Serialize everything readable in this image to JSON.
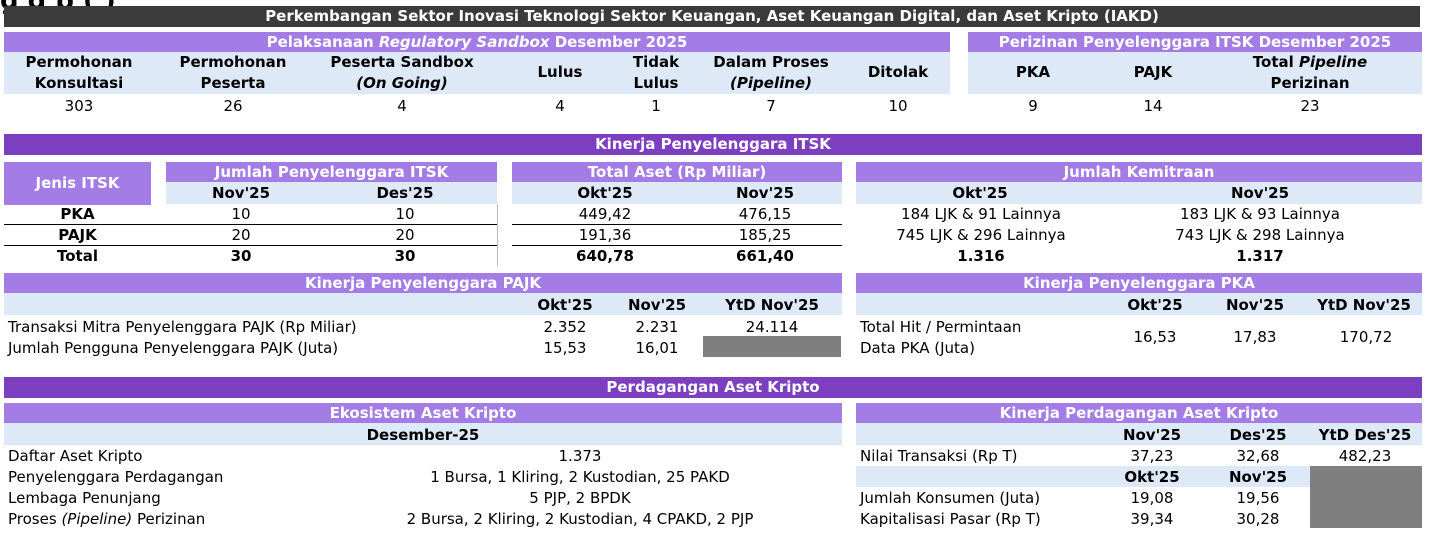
{
  "overflow_title": "g  g          p  (    )",
  "main_title": "Perkembangan Sektor Inovasi Teknologi Sektor Keuangan, Aset Keuangan Digital, dan Aset Kripto (IAKD)",
  "sandbox": {
    "title_pre": "Pelaksanaan ",
    "title_em": "Regulatory  Sandbox",
    "title_post": "  Desember 2025",
    "h_konsultasi_1": "Permohonan",
    "h_konsultasi_2": "Konsultasi",
    "h_peserta_1": "Permohonan",
    "h_peserta_2": "Peserta",
    "h_ongoing_1": "Peserta Sandbox",
    "h_ongoing_2": "(On Going)",
    "h_lulus": "Lulus",
    "h_tidak_1": "Tidak",
    "h_tidak_2": "Lulus",
    "h_proses_1": "Dalam Proses",
    "h_proses_2": "(Pipeline)",
    "h_ditolak": "Ditolak",
    "v_konsultasi": "303",
    "v_peserta": "26",
    "v_ongoing": "4",
    "v_lulus": "4",
    "v_tidak": "1",
    "v_proses": "7",
    "v_ditolak": "10"
  },
  "perizinan": {
    "title": "Perizinan Penyelenggara ITSK Desember 2025",
    "h_pka": "PKA",
    "h_pajk": "PAJK",
    "h_total_pre": "Total ",
    "h_total_em": "Pipeline",
    "h_total_2": "Perizinan",
    "v_pka": "9",
    "v_pajk": "14",
    "v_total": "23"
  },
  "kinerja_itsk": {
    "title": "Kinerja Penyelenggara ITSK",
    "jenis_label": "Jenis ITSK",
    "jumlah_title": "Jumlah Penyelenggara ITSK",
    "jumlah_m1": "Nov'25",
    "jumlah_m2": "Des'25",
    "aset_title": "Total Aset (Rp Miliar)",
    "aset_m1": "Okt'25",
    "aset_m2": "Nov'25",
    "kemitraan_title": "Jumlah Kemitraan",
    "kem_m1": "Okt'25",
    "kem_m2": "Nov'25",
    "rows": [
      {
        "jenis": "PKA",
        "j1": "10",
        "j2": "10",
        "a1": "449,42",
        "a2": "476,15",
        "k1": "184 LJK & 91 Lainnya",
        "k2": "183 LJK & 93 Lainnya"
      },
      {
        "jenis": "PAJK",
        "j1": "20",
        "j2": "20",
        "a1": "191,36",
        "a2": "185,25",
        "k1": "745 LJK & 296 Lainnya",
        "k2": "743 LJK & 298 Lainnya"
      },
      {
        "jenis": "Total",
        "j1": "30",
        "j2": "30",
        "a1": "640,78",
        "a2": "661,40",
        "k1": "1.316",
        "k2": "1.317"
      }
    ]
  },
  "pajk": {
    "title": "Kinerja Penyelenggara PAJK",
    "m1": "Okt'25",
    "m2": "Nov'25",
    "m3": "YtD Nov'25",
    "r1_label": "Transaksi Mitra Penyelenggara PAJK (Rp Miliar)",
    "r1_v1": "2.352",
    "r1_v2": "2.231",
    "r1_v3": "24.114",
    "r2_label": "Jumlah Pengguna Penyelenggara PAJK (Juta)",
    "r2_v1": "15,53",
    "r2_v2": "16,01"
  },
  "pka": {
    "title": "Kinerja Penyelenggara PKA",
    "m1": "Okt'25",
    "m2": "Nov'25",
    "m3": "YtD Nov'25",
    "label_1": "Total Hit / Permintaan",
    "label_2": "Data PKA (Juta)",
    "v1": "16,53",
    "v2": "17,83",
    "v3": "170,72"
  },
  "kripto": {
    "title": "Perdagangan Aset Kripto",
    "eko_title": "Ekosistem Aset Kripto",
    "eko_month": "Desember-25",
    "eko_rows": [
      {
        "label": "Daftar Aset Kripto",
        "value": "1.373"
      },
      {
        "label": "Penyelenggara Perdagangan",
        "value": "1 Bursa, 1 Kliring, 2 Kustodian, 25 PAKD"
      },
      {
        "label": "Lembaga Penunjang",
        "value": "5 PJP, 2 BPDK"
      },
      {
        "label_pre": "Proses ",
        "label_em": "(Pipeline)",
        "label_post": "  Perizinan",
        "value": "2 Bursa, 2 Kliring, 2 Kustodian, 4 CPAKD, 2 PJP"
      }
    ],
    "perd_title": "Kinerja Perdagangan Aset Kripto",
    "p_m1": "Nov'25",
    "p_m2": "Des'25",
    "p_m3": "YtD Des'25",
    "nilai_label": "Nilai Transaksi (Rp T)",
    "nilai_v1": "37,23",
    "nilai_v2": "32,68",
    "nilai_v3": "482,23",
    "q_m1": "Okt'25",
    "q_m2": "Nov'25",
    "kons_label": "Jumlah Konsumen (Juta)",
    "kons_v1": "19,08",
    "kons_v2": "19,56",
    "kap_label": "Kapitalisasi Pasar (Rp T)",
    "kap_v1": "39,34",
    "kap_v2": "30,28"
  },
  "colors": {
    "dark": "#3b3b3b",
    "purple": "#7c3fbf",
    "light_purple": "#a37ce6",
    "light_blue": "#dde9f7",
    "gray": "#7f7f7f"
  }
}
